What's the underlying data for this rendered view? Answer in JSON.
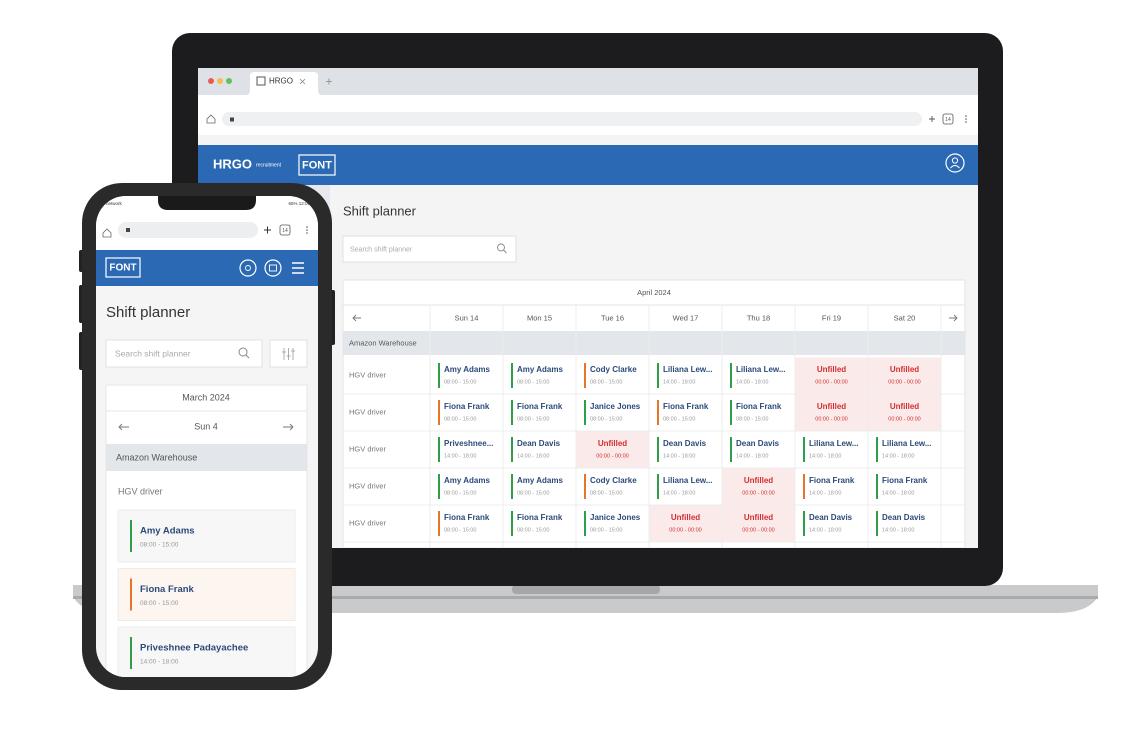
{
  "browser": {
    "tab_title": "HRGO",
    "tab_count": "14"
  },
  "header": {
    "logo": "HRGO",
    "logo_sub": "recruitment",
    "brand": "FONT"
  },
  "desktop": {
    "title": "Shift planner",
    "search_placeholder": "Search shift planner",
    "month": "April 2024",
    "days": [
      "Sun 14",
      "Mon 15",
      "Tue 16",
      "Wed 17",
      "Thu 18",
      "Fri 19",
      "Sat 20"
    ],
    "group": "Amazon Warehouse",
    "rows": [
      {
        "role": "HGV driver",
        "shifts": [
          {
            "name": "Amy Adams",
            "time": "08:00 - 15:00",
            "color": "#2e9e48",
            "filled": true
          },
          {
            "name": "Amy Adams",
            "time": "08:00 - 15:00",
            "color": "#2e9e48",
            "filled": true
          },
          {
            "name": "Cody Clarke",
            "time": "08:00 - 15:00",
            "color": "#e8742a",
            "filled": true
          },
          {
            "name": "Liliana Lew...",
            "time": "14:00 - 18:00",
            "color": "#2e9e48",
            "filled": true
          },
          {
            "name": "Liliana Lew...",
            "time": "14:00 - 18:00",
            "color": "#2e9e48",
            "filled": true
          },
          {
            "name": "Unfilled",
            "time": "00:00 - 00:00",
            "color": "#d32f2f",
            "filled": false
          },
          {
            "name": "Unfilled",
            "time": "00:00 - 00:00",
            "color": "#d32f2f",
            "filled": false
          }
        ]
      },
      {
        "role": "HGV driver",
        "shifts": [
          {
            "name": "Fiona Frank",
            "time": "08:00 - 15:00",
            "color": "#e8742a",
            "filled": true
          },
          {
            "name": "Fiona Frank",
            "time": "08:00 - 15:00",
            "color": "#2e9e48",
            "filled": true
          },
          {
            "name": "Janice Jones",
            "time": "08:00 - 15:00",
            "color": "#2e9e48",
            "filled": true
          },
          {
            "name": "Fiona Frank",
            "time": "08:00 - 15:00",
            "color": "#e8742a",
            "filled": true
          },
          {
            "name": "Fiona Frank",
            "time": "08:00 - 15:00",
            "color": "#2e9e48",
            "filled": true
          },
          {
            "name": "Unfilled",
            "time": "00:00 - 00:00",
            "color": "#d32f2f",
            "filled": false
          },
          {
            "name": "Unfilled",
            "time": "00:00 - 00:00",
            "color": "#d32f2f",
            "filled": false
          }
        ]
      },
      {
        "role": "HGV driver",
        "shifts": [
          {
            "name": "Priveshnee...",
            "time": "14:00 - 18:00",
            "color": "#2e9e48",
            "filled": true
          },
          {
            "name": "Dean Davis",
            "time": "14:00 - 18:00",
            "color": "#2e9e48",
            "filled": true
          },
          {
            "name": "Unfilled",
            "time": "00:00 - 00:00",
            "color": "#d32f2f",
            "filled": false
          },
          {
            "name": "Dean Davis",
            "time": "14:00 - 18:00",
            "color": "#2e9e48",
            "filled": true
          },
          {
            "name": "Dean Davis",
            "time": "14:00 - 18:00",
            "color": "#2e9e48",
            "filled": true
          },
          {
            "name": "Liliana Lew...",
            "time": "14:00 - 18:00",
            "color": "#2e9e48",
            "filled": true
          },
          {
            "name": "Liliana Lew...",
            "time": "14:00 - 18:00",
            "color": "#2e9e48",
            "filled": true
          }
        ]
      },
      {
        "role": "HGV driver",
        "shifts": [
          {
            "name": "Amy Adams",
            "time": "08:00 - 15:00",
            "color": "#2e9e48",
            "filled": true
          },
          {
            "name": "Amy Adams",
            "time": "08:00 - 15:00",
            "color": "#2e9e48",
            "filled": true
          },
          {
            "name": "Cody Clarke",
            "time": "08:00 - 15:00",
            "color": "#e8742a",
            "filled": true
          },
          {
            "name": "Liliana Lew...",
            "time": "14:00 - 18:00",
            "color": "#2e9e48",
            "filled": true
          },
          {
            "name": "Unfilled",
            "time": "00:00 - 00:00",
            "color": "#d32f2f",
            "filled": false
          },
          {
            "name": "Fiona Frank",
            "time": "14:00 - 18:00",
            "color": "#e8742a",
            "filled": true
          },
          {
            "name": "Fiona Frank",
            "time": "14:00 - 18:00",
            "color": "#2e9e48",
            "filled": true
          }
        ]
      },
      {
        "role": "HGV driver",
        "shifts": [
          {
            "name": "Fiona Frank",
            "time": "08:00 - 15:00",
            "color": "#e8742a",
            "filled": true
          },
          {
            "name": "Fiona Frank",
            "time": "08:00 - 15:00",
            "color": "#2e9e48",
            "filled": true
          },
          {
            "name": "Janice Jones",
            "time": "08:00 - 15:00",
            "color": "#2e9e48",
            "filled": true
          },
          {
            "name": "Unfilled",
            "time": "00:00 - 00:00",
            "color": "#d32f2f",
            "filled": false
          },
          {
            "name": "Unfilled",
            "time": "00:00 - 00:00",
            "color": "#d32f2f",
            "filled": false
          },
          {
            "name": "Dean Davis",
            "time": "14:00 - 18:00",
            "color": "#2e9e48",
            "filled": true
          },
          {
            "name": "Dean Davis",
            "time": "14:00 - 18:00",
            "color": "#2e9e48",
            "filled": true
          }
        ]
      }
    ]
  },
  "mobile": {
    "status_left": "network",
    "status_right": "65% 12:00",
    "tab_count": "14",
    "brand": "FONT",
    "title": "Shift planner",
    "search_placeholder": "Search shift planner",
    "month": "March 2024",
    "day": "Sun 4",
    "group": "Amazon Warehouse",
    "role": "HGV driver",
    "shifts": [
      {
        "name": "Amy Adams",
        "time": "08:00 - 15:00",
        "color": "#2e9e48",
        "background": "#f7f7f7"
      },
      {
        "name": "Fiona Frank",
        "time": "08:00 - 15:00",
        "color": "#e8742a",
        "background": "#fdf5f0"
      },
      {
        "name": "Priveshnee Padayachee",
        "time": "14:00 - 18:00",
        "color": "#2e9e48",
        "background": "#f7f7f7"
      }
    ]
  }
}
